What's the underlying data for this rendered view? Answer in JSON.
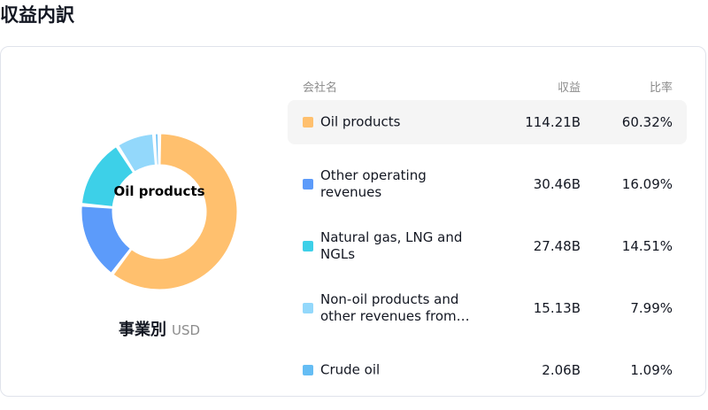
{
  "page": {
    "title": "収益内訳"
  },
  "donut": {
    "center_label": "Oil products",
    "caption": "事業別",
    "unit": "USD"
  },
  "table": {
    "headers": {
      "name": "会社名",
      "revenue": "収益",
      "ratio": "比率"
    },
    "rows": [
      {
        "label": "Oil products",
        "revenue": "114.21B",
        "ratio": "60.32%",
        "color": "#ffc06e",
        "highlight": true
      },
      {
        "label": "Other operating revenues",
        "revenue": "30.46B",
        "ratio": "16.09%",
        "color": "#5c9bfa",
        "highlight": false
      },
      {
        "label": "Natural gas, LNG and NGLs",
        "revenue": "27.48B",
        "ratio": "14.51%",
        "color": "#3dd0e8",
        "highlight": false
      },
      {
        "label": "Non-oil products and other revenues from…",
        "revenue": "15.13B",
        "ratio": "7.99%",
        "color": "#93d8fb",
        "highlight": false
      },
      {
        "label": "Crude oil",
        "revenue": "2.06B",
        "ratio": "1.09%",
        "color": "#65bdf4",
        "highlight": false
      }
    ]
  },
  "chart_data": {
    "type": "pie",
    "categories": [
      "Oil products",
      "Other operating revenues",
      "Natural gas, LNG and NGLs",
      "Non-oil products and other revenues from…",
      "Crude oil"
    ],
    "values": [
      60.32,
      16.09,
      14.51,
      7.99,
      1.09
    ],
    "revenues_billion_usd": [
      114.21,
      30.46,
      27.48,
      15.13,
      2.06
    ],
    "colors": [
      "#ffc06e",
      "#5c9bfa",
      "#3dd0e8",
      "#93d8fb",
      "#65bdf4"
    ],
    "donut": true,
    "title": "収益内訳"
  }
}
